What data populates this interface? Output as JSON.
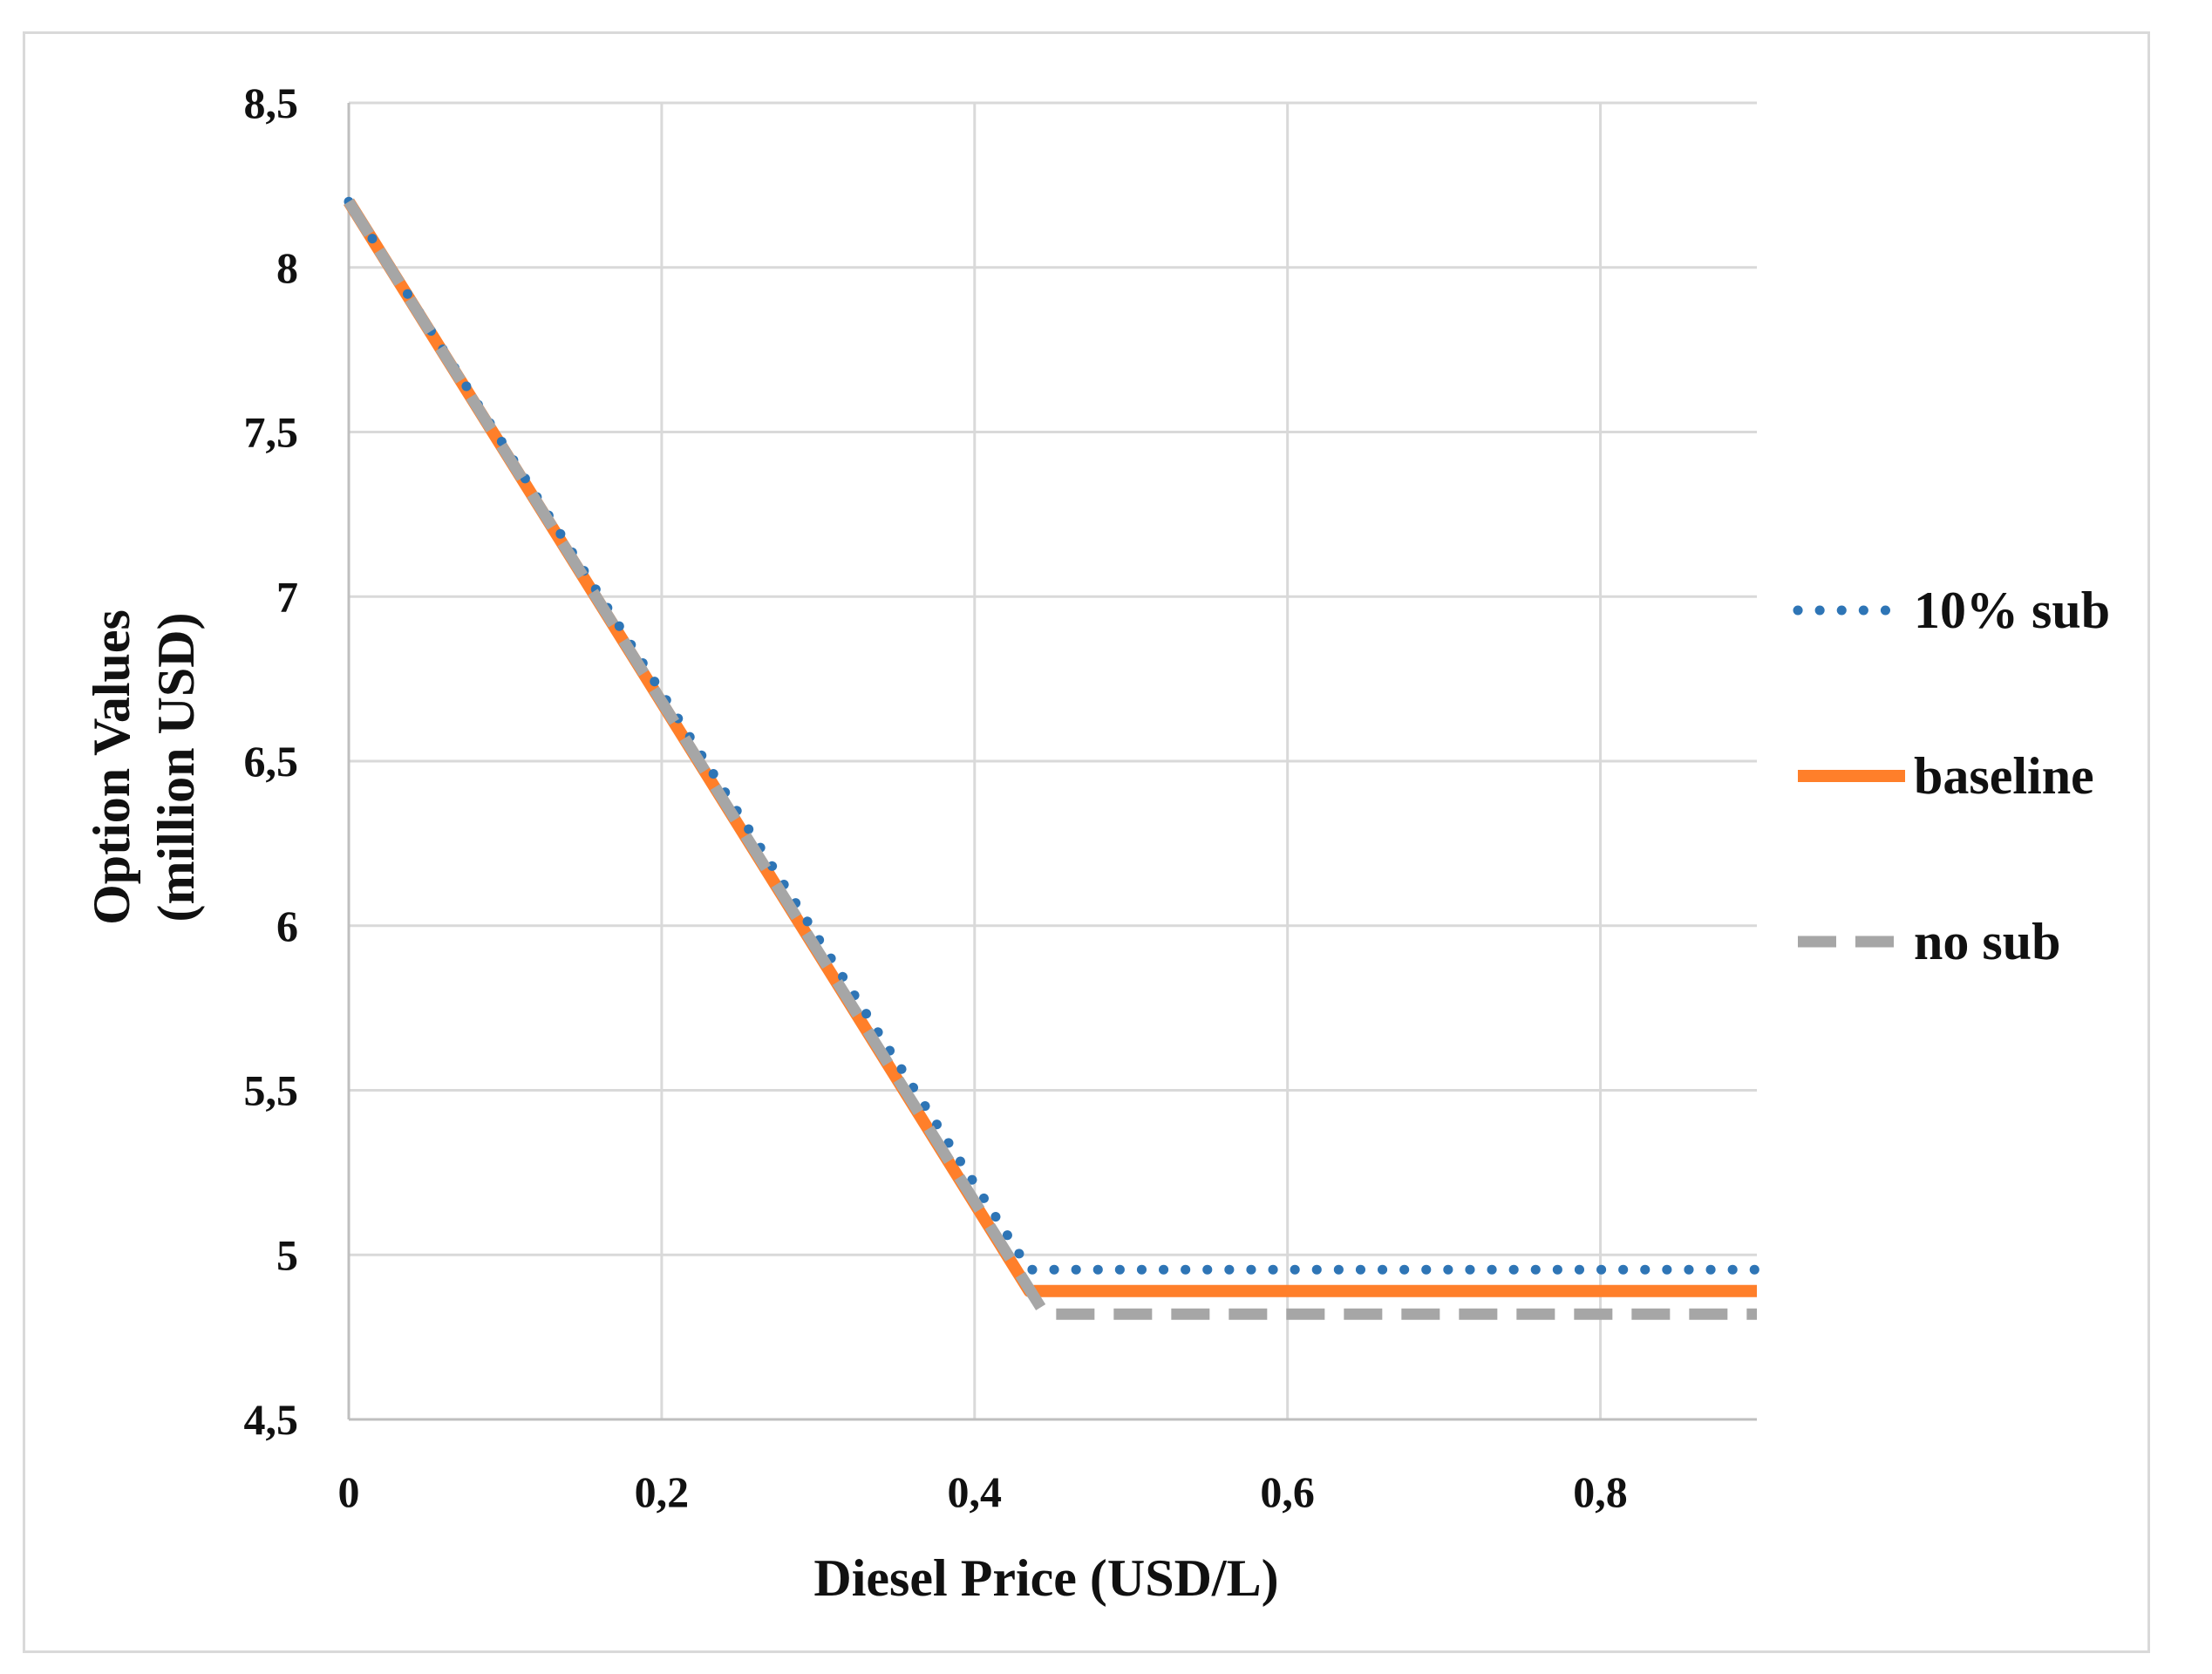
{
  "chart_data": {
    "type": "line",
    "xlabel": "Diesel Price (USD/L)",
    "ylabel_lines": [
      "Option Values",
      "(million USD)"
    ],
    "x_ticks": [
      "0",
      "0,2",
      "0,4",
      "0,6",
      "0,8"
    ],
    "x_tick_values": [
      0,
      0.2,
      0.4,
      0.6,
      0.8
    ],
    "y_ticks": [
      "4,5",
      "5",
      "5,5",
      "6",
      "6,5",
      "7",
      "7,5",
      "8",
      "8,5"
    ],
    "y_tick_values": [
      4.5,
      5,
      5.5,
      6,
      6.5,
      7,
      7.5,
      8,
      8.5
    ],
    "xlim": [
      0,
      0.9
    ],
    "ylim": [
      4.5,
      8.5
    ],
    "grid": true,
    "legend_position": "right",
    "series": [
      {
        "name": "10% sub",
        "color": "#2e75b6",
        "style": "dotted",
        "x": [
          0,
          0.435,
          0.9
        ],
        "y": [
          8.2,
          4.955,
          4.955
        ]
      },
      {
        "name": "baseline",
        "color": "#ff7f2a",
        "style": "solid",
        "x": [
          0,
          0.435,
          0.9
        ],
        "y": [
          8.2,
          4.89,
          4.89
        ]
      },
      {
        "name": "no sub",
        "color": "#a6a6a6",
        "style": "dashed",
        "x": [
          0,
          0.445,
          0.9
        ],
        "y": [
          8.2,
          4.82,
          4.82
        ]
      }
    ]
  }
}
